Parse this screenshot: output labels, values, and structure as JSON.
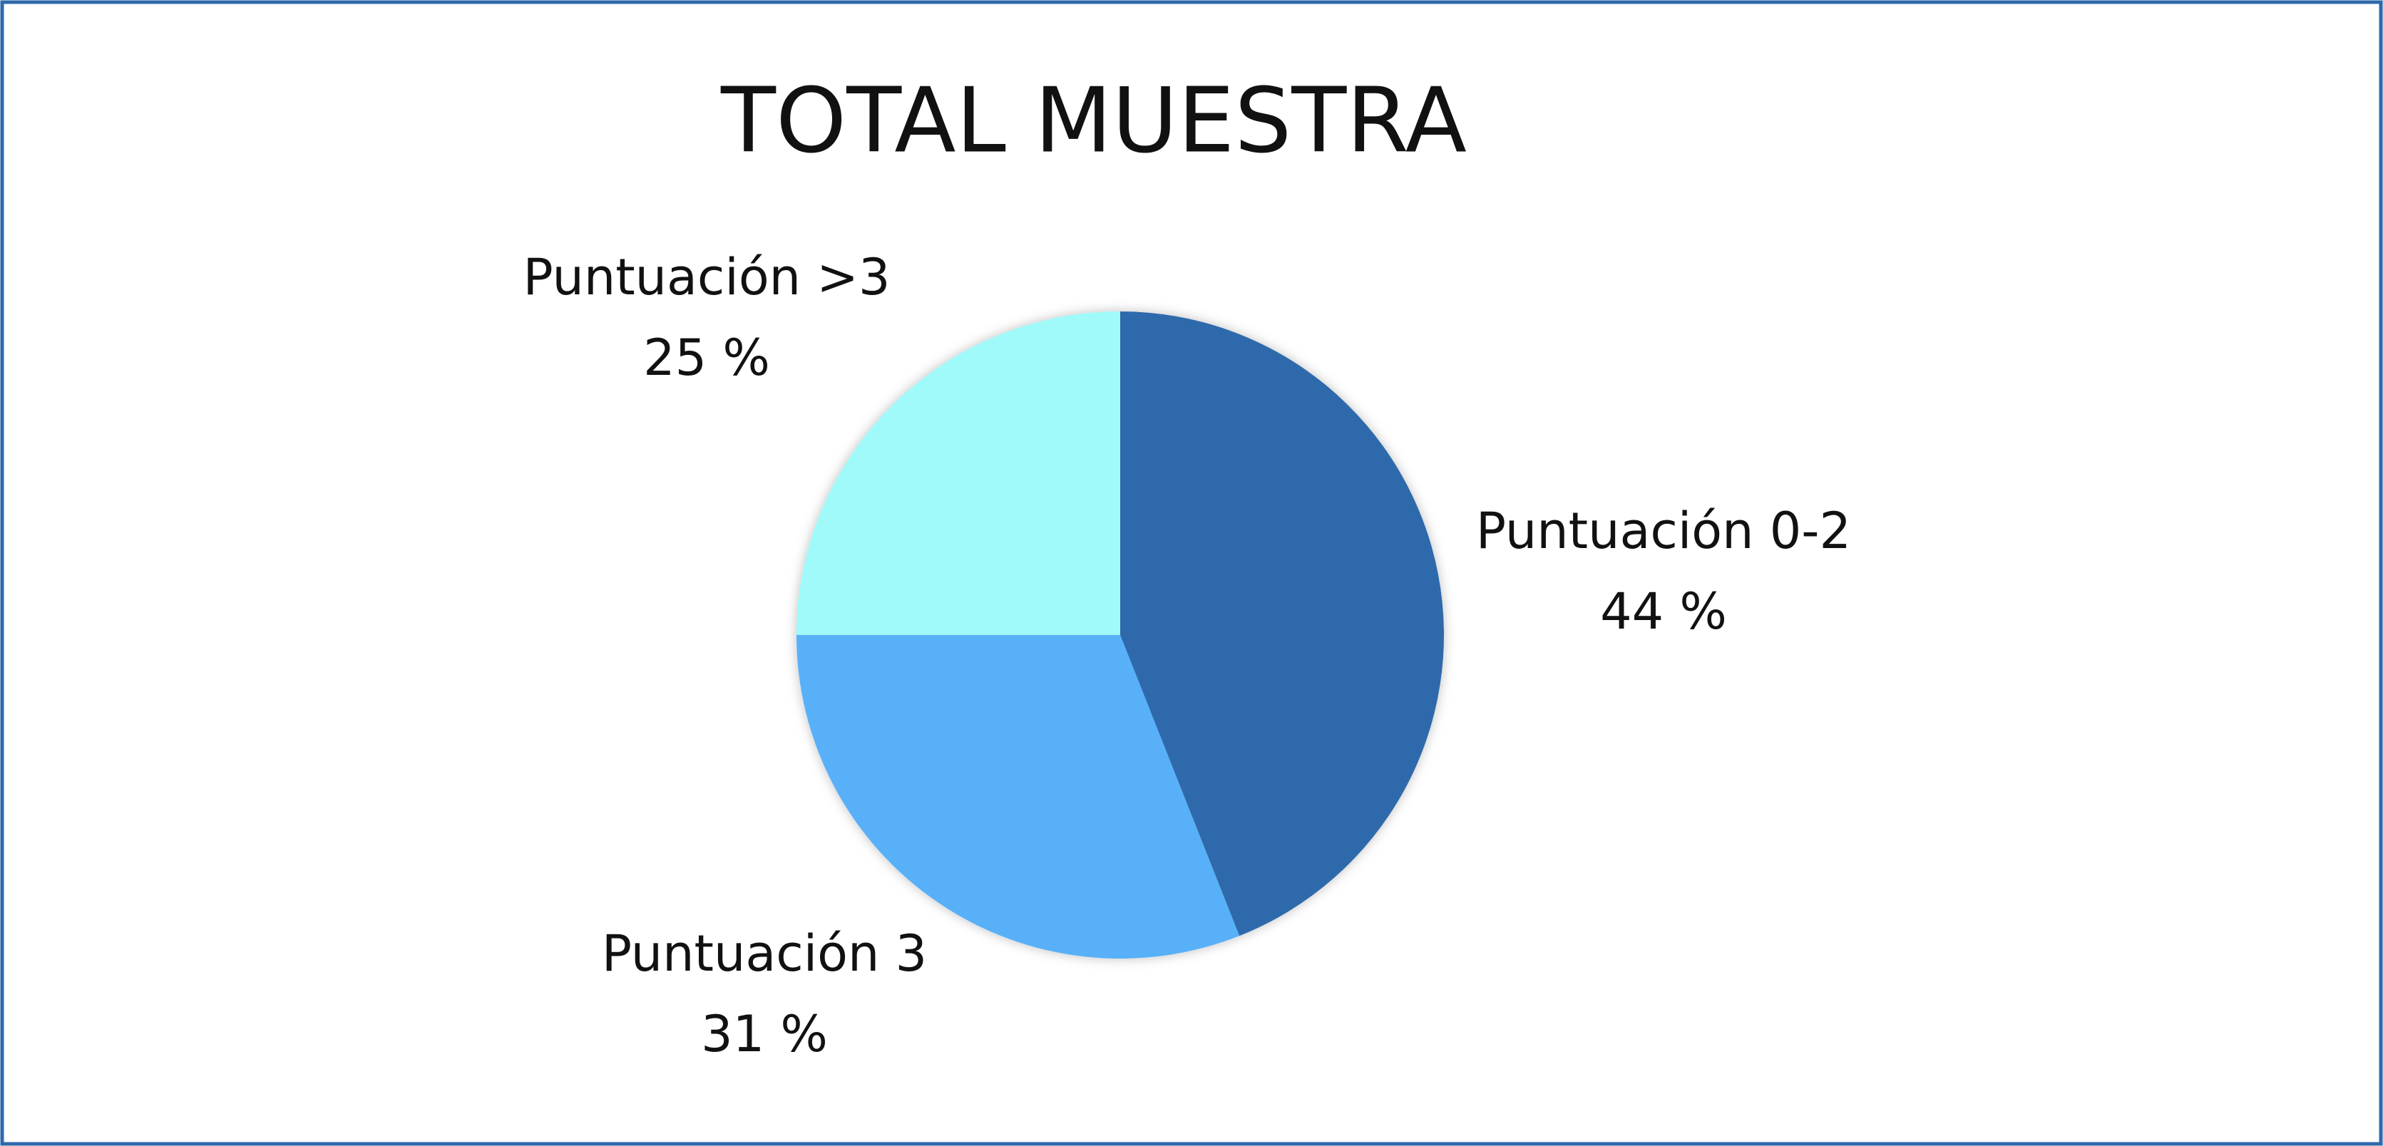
{
  "chart_data": {
    "type": "pie",
    "title": "TOTAL MUESTRA",
    "categories": [
      "Puntuación 0-2",
      "Puntuación 3",
      "Puntuación >3"
    ],
    "values": [
      44,
      31,
      25
    ],
    "value_labels": [
      "44 %",
      "31 %",
      "25 %"
    ],
    "colors": [
      "#2e6aab",
      "#58b0f8",
      "#a0fafa"
    ]
  }
}
